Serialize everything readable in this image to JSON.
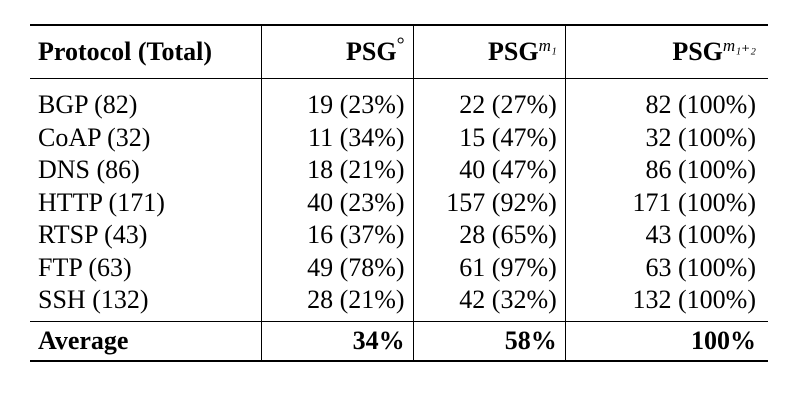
{
  "table": {
    "headers": [
      {
        "base": "Protocol (Total)",
        "sup": ""
      },
      {
        "base": "PSG",
        "sup": "°"
      },
      {
        "base": "PSG",
        "sup": "m₁"
      },
      {
        "base": "PSG",
        "sup": "m₁₊₂"
      }
    ],
    "rows": [
      [
        "BGP (82)",
        "19 (23%)",
        "22 (27%)",
        "82 (100%)"
      ],
      [
        "CoAP (32)",
        "11 (34%)",
        "15 (47%)",
        "32 (100%)"
      ],
      [
        "DNS (86)",
        "18 (21%)",
        "40 (47%)",
        "86 (100%)"
      ],
      [
        "HTTP (171)",
        "40 (23%)",
        "157 (92%)",
        "171 (100%)"
      ],
      [
        "RTSP (43)",
        "16 (37%)",
        "28 (65%)",
        "43 (100%)"
      ],
      [
        "FTP (63)",
        "49 (78%)",
        "61 (97%)",
        "63 (100%)"
      ],
      [
        "SSH (132)",
        "28 (21%)",
        "42 (32%)",
        "132 (100%)"
      ]
    ],
    "footer": [
      "Average",
      "34%",
      "58%",
      "100%"
    ]
  }
}
